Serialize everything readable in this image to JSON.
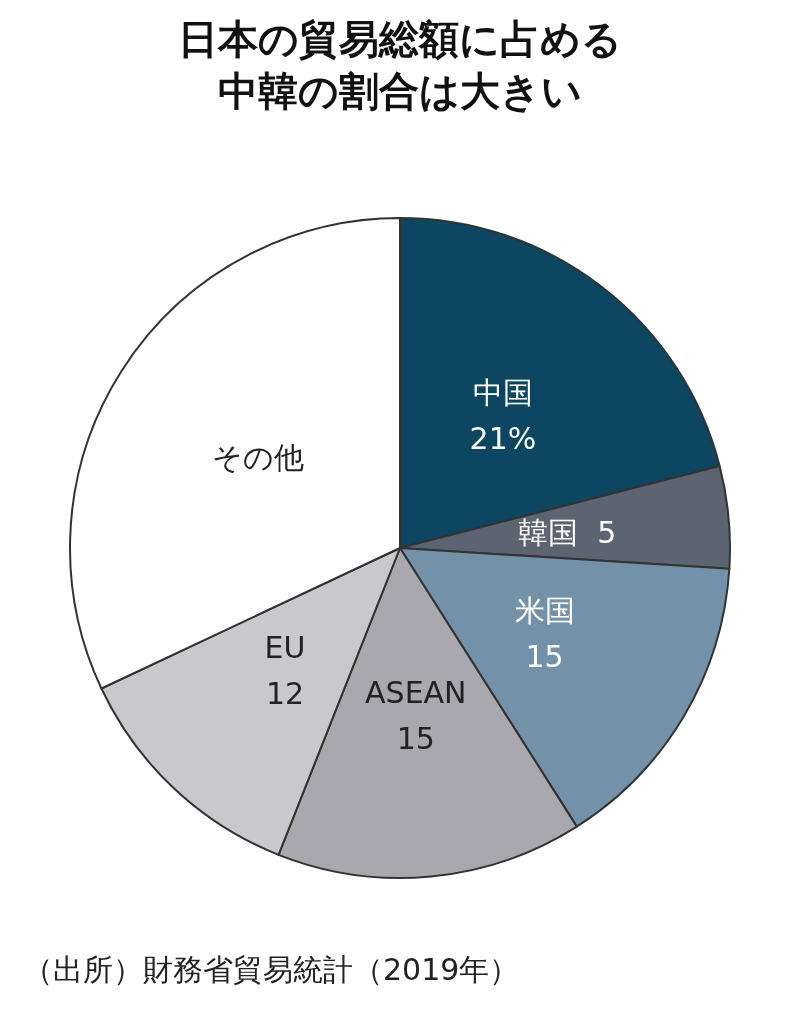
{
  "chart_data": {
    "type": "pie",
    "title": "日本の貿易総額に占める中韓の割合は大きい",
    "categories": [
      "中国",
      "韓国",
      "米国",
      "ASEAN",
      "EU",
      "その他"
    ],
    "values": [
      21,
      5,
      15,
      15,
      12,
      32
    ],
    "value_labels": [
      "21%",
      "5",
      "15",
      "15",
      "12",
      null
    ],
    "colors": [
      "#0d4660",
      "#5b6470",
      "#7391a9",
      "#a9a8ae",
      "#c9c9cd",
      "#ffffff"
    ],
    "legend": false,
    "annotations": [
      "（出所）財務省貿易統計（2019年）"
    ]
  }
}
